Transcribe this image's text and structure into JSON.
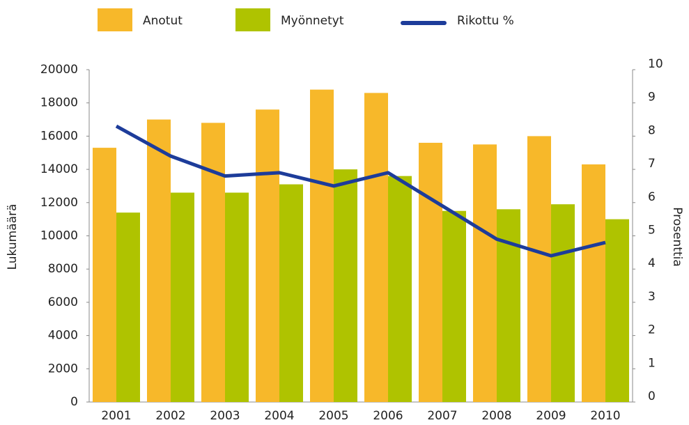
{
  "chart_data": {
    "type": "bar_line",
    "categories": [
      "2001",
      "2002",
      "2003",
      "2004",
      "2005",
      "2006",
      "2007",
      "2008",
      "2009",
      "2010"
    ],
    "series": [
      {
        "name": "Anotut",
        "color": "#f7b82a",
        "values": [
          15300,
          17000,
          16800,
          17600,
          18800,
          18600,
          15600,
          15500,
          16000,
          14300
        ]
      },
      {
        "name": "Myönnetyt",
        "color": "#afc300",
        "values": [
          11400,
          12600,
          12600,
          13100,
          14000,
          13600,
          11500,
          11600,
          11900,
          11000
        ]
      },
      {
        "name": "Rikottu %",
        "color": "#1d3c9a",
        "axis": "y2",
        "values": [
          8.3,
          7.4,
          6.8,
          6.9,
          6.5,
          6.9,
          5.9,
          4.9,
          4.4,
          4.8
        ]
      }
    ],
    "ylabel": "Lukumäärä",
    "y2label": "Prosenttia",
    "ylim": [
      0,
      20000
    ],
    "yticks": [
      0,
      2000,
      4000,
      6000,
      8000,
      10000,
      12000,
      14000,
      16000,
      18000,
      20000
    ],
    "y2lim": [
      0,
      10
    ],
    "y2ticks": [
      0,
      1,
      2,
      3,
      4,
      5,
      6,
      7,
      8,
      9,
      10
    ]
  }
}
